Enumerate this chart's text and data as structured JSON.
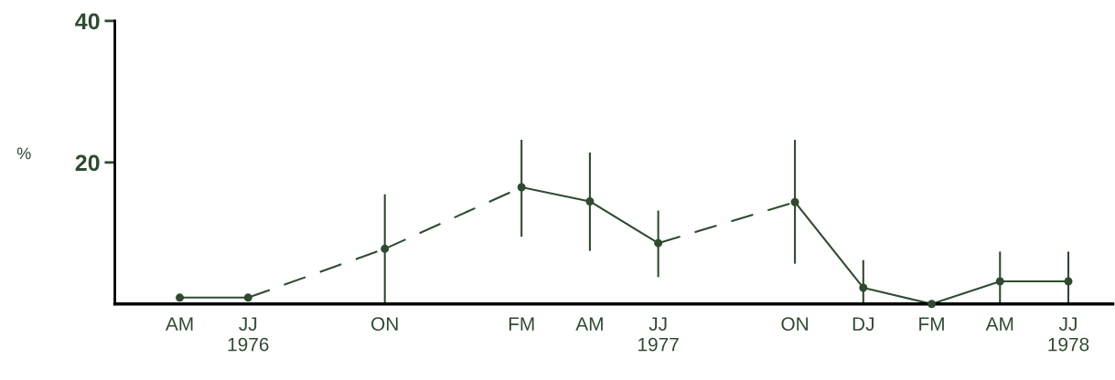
{
  "chart_data": {
    "type": "line",
    "ylabel": "%",
    "categories": [
      "AM",
      "JJ\n1976",
      null,
      "ON",
      null,
      "FM",
      "AM",
      "JJ\n1977",
      null,
      "ON",
      "DJ",
      "FM",
      "AM",
      "JJ\n1978"
    ],
    "ylim": [
      0,
      40
    ],
    "yticks": [
      20,
      40
    ],
    "grid": false,
    "legend": false,
    "marker": "circle",
    "series": [
      {
        "color": "#2f4a30",
        "values": [
          0.9,
          0.9,
          null,
          7.8,
          null,
          16.5,
          14.5,
          8.6,
          null,
          14.4,
          2.3,
          0,
          3.2,
          3.2
        ],
        "errors": [
          null,
          null,
          null,
          [
            0,
            15.5
          ],
          null,
          [
            9.5,
            23.2
          ],
          [
            7.5,
            21.4
          ],
          [
            3.8,
            13.2
          ],
          null,
          [
            5.7,
            23.2
          ],
          [
            0,
            6.2
          ],
          null,
          [
            0,
            7.4
          ],
          [
            0,
            7.4
          ]
        ]
      }
    ]
  }
}
